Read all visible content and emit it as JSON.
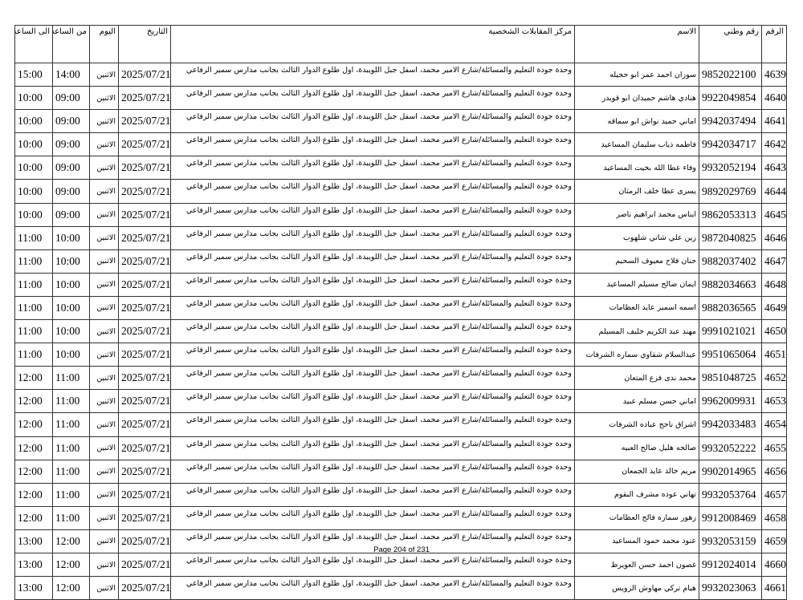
{
  "headers": {
    "no": "الرقم",
    "national_id": "رقم وطني",
    "name": "الاسم",
    "center": "مركز المقابلات الشخصية",
    "date": "التاريخ",
    "day": "اليوم",
    "from": "من الساعة",
    "to": "الى الساعة"
  },
  "rows": [
    {
      "no": "4639",
      "national_id": "9852022100",
      "name": "سوزان احمد عمر ابو حجيله",
      "center": "وحدة جودة التعليم والمسائلة/شارع الامير محمد، اسفل جبل اللويبدة، اول طلوع الدوار الثالث بجانب مدارس سمير الرفاعي",
      "date": "2025/07/21",
      "day": "الاثنين",
      "from": "14:00",
      "to": "15:00"
    },
    {
      "no": "4640",
      "national_id": "9922049854",
      "name": "هنادي هاشم حميدان ابو قويدر",
      "center": "وحدة جودة التعليم والمسائلة/شارع الامير محمد، اسفل جبل اللويبدة، اول طلوع الدوار الثالث بجانب مدارس سمير الرفاعي",
      "date": "2025/07/21",
      "day": "الاثنين",
      "from": "09:00",
      "to": "10:00"
    },
    {
      "no": "4641",
      "national_id": "9942037494",
      "name": "اماني حميد نواش ابو سماقه",
      "center": "وحدة جودة التعليم والمسائلة/شارع الامير محمد، اسفل جبل اللويبدة، اول طلوع الدوار الثالث بجانب مدارس سمير الرفاعي",
      "date": "2025/07/21",
      "day": "الاثنين",
      "from": "09:00",
      "to": "10:00"
    },
    {
      "no": "4642",
      "national_id": "9942034717",
      "name": "فاطمه ذياب سليمان المساعيد",
      "center": "وحدة جودة التعليم والمسائلة/شارع الامير محمد، اسفل جبل اللويبدة، اول طلوع الدوار الثالث بجانب مدارس سمير الرفاعي",
      "date": "2025/07/21",
      "day": "الاثنين",
      "from": "09:00",
      "to": "10:00"
    },
    {
      "no": "4643",
      "national_id": "9932052194",
      "name": "وفاء عطا الله بخيت المساعيد",
      "center": "وحدة جودة التعليم والمسائلة/شارع الامير محمد، اسفل جبل اللويبدة، اول طلوع الدوار الثالث بجانب مدارس سمير الرفاعي",
      "date": "2025/07/21",
      "day": "الاثنين",
      "from": "09:00",
      "to": "10:00"
    },
    {
      "no": "4644",
      "national_id": "9892029769",
      "name": "يسرى عطا خلف الرمثان",
      "center": "وحدة جودة التعليم والمسائلة/شارع الامير محمد، اسفل جبل اللويبدة، اول طلوع الدوار الثالث بجانب مدارس سمير الرفاعي",
      "date": "2025/07/21",
      "day": "الاثنين",
      "from": "09:00",
      "to": "10:00"
    },
    {
      "no": "4645",
      "national_id": "9862053313",
      "name": "ايناس محمد ابراهيم ناصر",
      "center": "وحدة جودة التعليم والمسائلة/شارع الامير محمد، اسفل جبل اللويبدة، اول طلوع الدوار الثالث بجانب مدارس سمير الرفاعي",
      "date": "2025/07/21",
      "day": "الاثنين",
      "from": "09:00",
      "to": "10:00"
    },
    {
      "no": "4646",
      "national_id": "9872040825",
      "name": "زين علي شاتي شلهوب",
      "center": "وحدة جودة التعليم والمسائلة/شارع الامير محمد، اسفل جبل اللويبدة، اول طلوع الدوار الثالث بجانب مدارس سمير الرفاعي",
      "date": "2025/07/21",
      "day": "الاثنين",
      "from": "10:00",
      "to": "11:00"
    },
    {
      "no": "4647",
      "national_id": "9882037402",
      "name": "حنان فلاح معيوف السحيم",
      "center": "وحدة جودة التعليم والمسائلة/شارع الامير محمد، اسفل جبل اللويبدة، اول طلوع الدوار الثالث بجانب مدارس سمير الرفاعي",
      "date": "2025/07/21",
      "day": "الاثنين",
      "from": "10:00",
      "to": "11:00"
    },
    {
      "no": "4648",
      "national_id": "9882034663",
      "name": "ايمان صالح مسيلم المساعيد",
      "center": "وحدة جودة التعليم والمسائلة/شارع الامير محمد، اسفل جبل اللويبدة، اول طلوع الدوار الثالث بجانب مدارس سمير الرفاعي",
      "date": "2025/07/21",
      "day": "الاثنين",
      "from": "10:00",
      "to": "11:00"
    },
    {
      "no": "4649",
      "national_id": "9882036565",
      "name": "اسمه اسمير عايد العظامات",
      "center": "وحدة جودة التعليم والمسائلة/شارع الامير محمد، اسفل جبل اللويبدة، اول طلوع الدوار الثالث بجانب مدارس سمير الرفاعي",
      "date": "2025/07/21",
      "day": "الاثنين",
      "from": "10:00",
      "to": "11:00"
    },
    {
      "no": "4650",
      "national_id": "9991021021",
      "name": "مهند عبد الكريم خليف المسيلم",
      "center": "وحدة جودة التعليم والمسائلة/شارع الامير محمد، اسفل جبل اللويبدة، اول طلوع الدوار الثالث بجانب مدارس سمير الرفاعي",
      "date": "2025/07/21",
      "day": "الاثنين",
      "from": "10:00",
      "to": "11:00"
    },
    {
      "no": "4651",
      "national_id": "9951065064",
      "name": "عبدالسلام شقاوي سماره الشرفات",
      "center": "وحدة جودة التعليم والمسائلة/شارع الامير محمد، اسفل جبل اللويبدة، اول طلوع الدوار الثالث بجانب مدارس سمير الرفاعي",
      "date": "2025/07/21",
      "day": "الاثنين",
      "from": "10:00",
      "to": "11:00"
    },
    {
      "no": "4652",
      "national_id": "9851048725",
      "name": "محمد ندى فزع المتعان",
      "center": "وحدة جودة التعليم والمسائلة/شارع الامير محمد، اسفل جبل اللويبدة، اول طلوع الدوار الثالث بجانب مدارس سمير الرفاعي",
      "date": "2025/07/21",
      "day": "الاثنين",
      "from": "11:00",
      "to": "12:00"
    },
    {
      "no": "4653",
      "national_id": "9962009931",
      "name": "اماني حسن مسلم عبيد",
      "center": "وحدة جودة التعليم والمسائلة/شارع الامير محمد، اسفل جبل اللويبدة، اول طلوع الدوار الثالث بجانب مدارس سمير الرفاعي",
      "date": "2025/07/21",
      "day": "الاثنين",
      "from": "11:00",
      "to": "12:00"
    },
    {
      "no": "4654",
      "national_id": "9942033483",
      "name": "اشراق ناجح عباده الشرفات",
      "center": "وحدة جودة التعليم والمسائلة/شارع الامير محمد، اسفل جبل اللويبدة، اول طلوع الدوار الثالث بجانب مدارس سمير الرفاعي",
      "date": "2025/07/21",
      "day": "الاثنين",
      "from": "11:00",
      "to": "12:00"
    },
    {
      "no": "4655",
      "national_id": "9932052222",
      "name": "صالحه هليل صالح العبيه",
      "center": "وحدة جودة التعليم والمسائلة/شارع الامير محمد، اسفل جبل اللويبدة، اول طلوع الدوار الثالث بجانب مدارس سمير الرفاعي",
      "date": "2025/07/21",
      "day": "الاثنين",
      "from": "11:00",
      "to": "12:00"
    },
    {
      "no": "4656",
      "national_id": "9902014965",
      "name": "مريم خالد عايد الجمعان",
      "center": "وحدة جودة التعليم والمسائلة/شارع الامير محمد، اسفل جبل اللويبدة، اول طلوع الدوار الثالث بجانب مدارس سمير الرفاعي",
      "date": "2025/07/21",
      "day": "الاثنين",
      "from": "11:00",
      "to": "12:00"
    },
    {
      "no": "4657",
      "national_id": "9932053764",
      "name": "تهاني عوده مشرف البقوم",
      "center": "وحدة جودة التعليم والمسائلة/شارع الامير محمد، اسفل جبل اللويبدة، اول طلوع الدوار الثالث بجانب مدارس سمير الرفاعي",
      "date": "2025/07/21",
      "day": "الاثنين",
      "from": "11:00",
      "to": "12:00"
    },
    {
      "no": "4658",
      "national_id": "9912008469",
      "name": "زهور سماره فالح العظامات",
      "center": "وحدة جودة التعليم والمسائلة/شارع الامير محمد، اسفل جبل اللويبدة، اول طلوع الدوار الثالث بجانب مدارس سمير الرفاعي",
      "date": "2025/07/21",
      "day": "الاثنين",
      "from": "11:00",
      "to": "12:00"
    },
    {
      "no": "4659",
      "national_id": "9932053159",
      "name": "عنود محمد حمود المساعيد",
      "center": "وحدة جودة التعليم والمسائلة/شارع الامير محمد، اسفل جبل اللويبدة، اول طلوع الدوار الثالث بجانب مدارس سمير الرفاعي",
      "date": "2025/07/21",
      "day": "الاثنين",
      "from": "12:00",
      "to": "13:00"
    },
    {
      "no": "4660",
      "national_id": "9912024014",
      "name": "غصون احمد حسن العويرظ",
      "center": "وحدة جودة التعليم والمسائلة/شارع الامير محمد، اسفل جبل اللويبدة، اول طلوع الدوار الثالث بجانب مدارس سمير الرفاعي",
      "date": "2025/07/21",
      "day": "الاثنين",
      "from": "12:00",
      "to": "13:00"
    },
    {
      "no": "4661",
      "national_id": "9932023063",
      "name": "هيام تركي مهاوش الرويس",
      "center": "وحدة جودة التعليم والمسائلة/شارع الامير محمد، اسفل جبل اللويبدة، اول طلوع الدوار الثالث بجانب مدارس سمير الرفاعي",
      "date": "2025/07/21",
      "day": "الاثنين",
      "from": "12:00",
      "to": "13:00"
    }
  ],
  "footer": "Page 204 of 231"
}
